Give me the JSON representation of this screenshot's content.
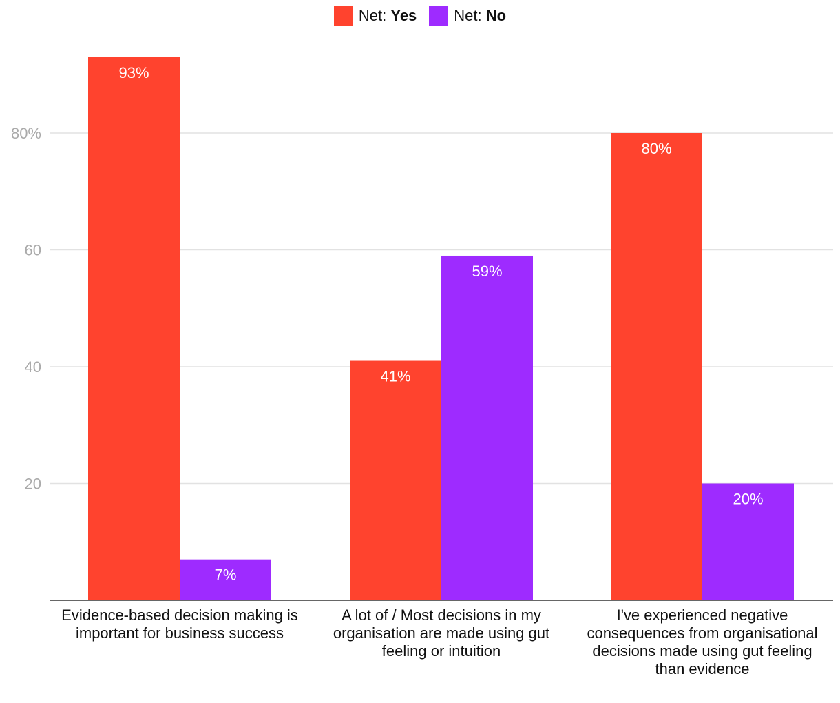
{
  "chart_data": {
    "type": "bar",
    "title": "",
    "xlabel": "",
    "ylabel": "",
    "ylim": [
      0,
      95
    ],
    "yticks": [
      {
        "value": 20,
        "label": "20"
      },
      {
        "value": 40,
        "label": "40"
      },
      {
        "value": 60,
        "label": "60"
      },
      {
        "value": 80,
        "label": "80%"
      }
    ],
    "grid": true,
    "legend_position": "top-center",
    "categories": [
      "Evidence-based decision making is important for business success",
      "A lot of / Most decisions in my organisation are made using gut feeling or intuition",
      "I've experienced negative consequences from organisational decisions made using gut feeling than evidence"
    ],
    "series": [
      {
        "name": "Net: Yes",
        "prefix": "Net: ",
        "emph": "Yes",
        "color": "#ff432e",
        "values": [
          93,
          41,
          80
        ],
        "labels": [
          "93%",
          "41%",
          "80%"
        ]
      },
      {
        "name": "Net: No",
        "prefix": "Net: ",
        "emph": "No",
        "color": "#9e2bff",
        "values": [
          7,
          59,
          20
        ],
        "labels": [
          "7%",
          "59%",
          "20%"
        ]
      }
    ]
  }
}
